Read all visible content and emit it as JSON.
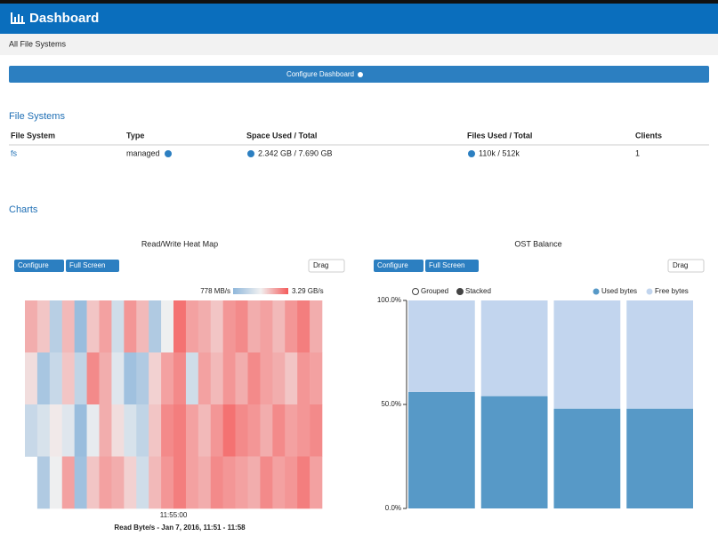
{
  "header": {
    "title": "Dashboard"
  },
  "breadcrumb": "All File Systems",
  "configure_button": "Configure Dashboard",
  "file_systems": {
    "title": "File Systems",
    "columns": [
      "File System",
      "Type",
      "Space Used / Total",
      "Files Used / Total",
      "Clients"
    ],
    "rows": [
      [
        "fs",
        "managed",
        "2.342 GB / 7.690 GB",
        "110k / 512k",
        "1"
      ]
    ]
  },
  "charts_title": "Charts",
  "chart_panels": [
    {
      "buttons": [
        "Configure",
        "Full Screen",
        "Drag"
      ]
    },
    {
      "buttons": [
        "Configure",
        "Full Screen",
        "Drag"
      ]
    }
  ],
  "chart_data": [
    {
      "type": "heatmap",
      "title": "Read/Write Heat Map",
      "colorbar_ticks": [
        {
          "value": 778,
          "label": "778 MB/s"
        },
        {
          "value": 3290,
          "label": "3.29 GB/s"
        }
      ],
      "xticks": [
        "11:55:00"
      ],
      "x_label": "Read Byte/s - Jan 7, 2016, 11:51 - 11:58",
      "colors": [
        "#8fb7db",
        "#f1f1f1",
        "#f45b5b"
      ],
      "rows": [
        [
          2600,
          2400,
          1300,
          2500,
          900,
          2400,
          2700,
          1600,
          2800,
          2500,
          1200,
          2000,
          3100,
          2700,
          2600,
          2400,
          2800,
          2900,
          2600,
          2700,
          2500,
          2800,
          3000,
          2600
        ],
        [
          2200,
          1100,
          1500,
          2400,
          1400,
          2900,
          2600,
          1800,
          1000,
          1200,
          2300,
          2700,
          2900,
          1600,
          2700,
          2500,
          2800,
          2600,
          2900,
          2700,
          2600,
          2400,
          2800,
          2700
        ],
        [
          1500,
          1700,
          2100,
          1800,
          900,
          1900,
          2600,
          2200,
          1700,
          1400,
          2400,
          2900,
          3000,
          2700,
          2500,
          2800,
          3100,
          2900,
          2800,
          2600,
          2900,
          2700,
          2800,
          2900
        ],
        [
          null,
          1200,
          2000,
          2700,
          1000,
          2400,
          2700,
          2600,
          2300,
          1600,
          2500,
          2800,
          3000,
          2700,
          2600,
          2900,
          2800,
          2700,
          2600,
          2900,
          2700,
          2800,
          3000,
          2700
        ]
      ]
    },
    {
      "type": "bar",
      "title": "OST Balance",
      "stacked": true,
      "controls": [
        "Grouped",
        "Stacked"
      ],
      "categories": [
        null,
        null,
        null,
        null
      ],
      "series": [
        {
          "name": "Used bytes",
          "color": "#5799c7",
          "values": [
            56,
            54,
            48,
            48
          ]
        },
        {
          "name": "Free bytes",
          "color": "#c2d5ee",
          "values": [
            44,
            46,
            52,
            52
          ]
        }
      ],
      "ylim": [
        0,
        100
      ],
      "yticks": [
        {
          "value": 0,
          "label": "0.0%"
        },
        {
          "value": 50,
          "label": "50.0%"
        },
        {
          "value": 100,
          "label": "100.0%"
        }
      ]
    }
  ]
}
